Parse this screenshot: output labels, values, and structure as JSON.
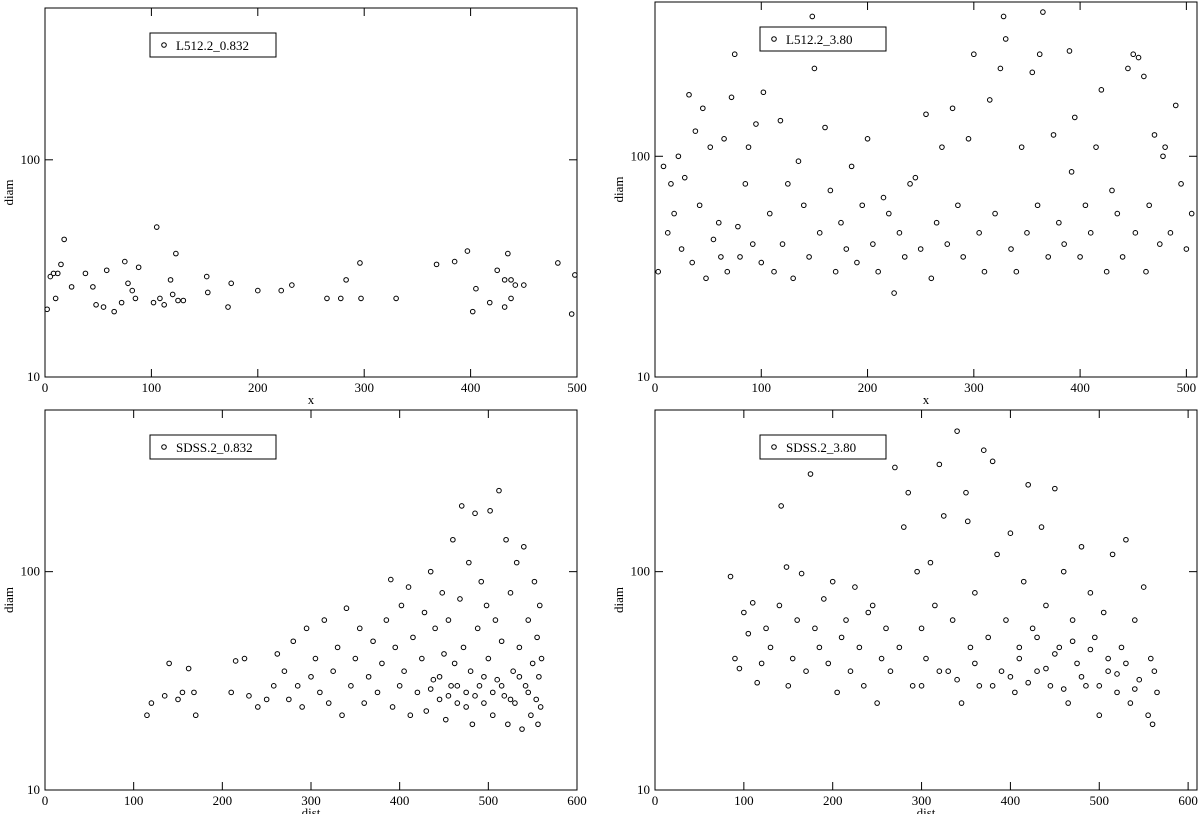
{
  "chart_data": [
    {
      "type": "scatter",
      "xlabel": "x",
      "ylabel": "diam",
      "ylog": true,
      "xlim": [
        0,
        500
      ],
      "ylim": [
        10,
        500
      ],
      "xticks": [
        0,
        100,
        200,
        300,
        400,
        500
      ],
      "yticks": [
        10,
        100
      ],
      "legend": "upper left",
      "series": [
        {
          "name": "L512.2_0.832",
          "color": "#000000",
          "x": [
            2,
            5,
            10,
            12,
            15,
            18,
            8,
            25,
            38,
            45,
            48,
            55,
            58,
            65,
            72,
            75,
            78,
            82,
            85,
            88,
            102,
            105,
            108,
            112,
            118,
            120,
            123,
            125,
            130,
            152,
            153,
            172,
            175,
            200,
            222,
            232,
            265,
            278,
            283,
            296,
            297,
            330,
            368,
            385,
            397,
            402,
            405,
            418,
            425,
            432,
            435,
            438,
            442,
            450,
            482,
            495,
            498,
            432,
            438
          ],
          "values": [
            20.5,
            29,
            23,
            30,
            33,
            43,
            30,
            26,
            30,
            26,
            21.5,
            21,
            31,
            20,
            22,
            34,
            27,
            25,
            23,
            32,
            22,
            49,
            23,
            21.5,
            28,
            24,
            37,
            22.5,
            22.5,
            29,
            24.5,
            21,
            27,
            25,
            25,
            26.5,
            23,
            23,
            28,
            33.5,
            23,
            23,
            33,
            34,
            38,
            20,
            25.5,
            22,
            31,
            21,
            37,
            28,
            26.5,
            26.5,
            33.5,
            19.5,
            29.5,
            28,
            23
          ]
        }
      ]
    },
    {
      "type": "scatter",
      "xlabel": "x",
      "ylabel": "diam",
      "ylog": true,
      "xlim": [
        0,
        510
      ],
      "ylim": [
        10,
        500
      ],
      "xticks": [
        0,
        100,
        200,
        300,
        400,
        500
      ],
      "yticks": [
        10,
        100
      ],
      "legend": "upper left",
      "series": [
        {
          "name": "L512.2_3.80",
          "color": "#000000",
          "x": [
            3,
            8,
            12,
            15,
            18,
            22,
            25,
            28,
            32,
            35,
            38,
            42,
            45,
            48,
            52,
            55,
            60,
            62,
            65,
            68,
            72,
            75,
            78,
            80,
            85,
            88,
            92,
            95,
            100,
            102,
            108,
            112,
            118,
            120,
            125,
            130,
            135,
            140,
            145,
            148,
            150,
            155,
            160,
            165,
            170,
            175,
            180,
            185,
            190,
            195,
            200,
            205,
            210,
            215,
            220,
            225,
            230,
            235,
            240,
            245,
            250,
            255,
            260,
            265,
            270,
            275,
            280,
            285,
            290,
            295,
            300,
            305,
            310,
            315,
            320,
            325,
            328,
            330,
            335,
            340,
            345,
            350,
            355,
            360,
            362,
            365,
            370,
            375,
            380,
            385,
            390,
            392,
            395,
            400,
            405,
            410,
            415,
            420,
            425,
            430,
            435,
            440,
            445,
            450,
            452,
            455,
            460,
            462,
            465,
            470,
            475,
            478,
            480,
            485,
            490,
            495,
            500,
            505
          ],
          "values": [
            30,
            90,
            45,
            75,
            55,
            100,
            38,
            80,
            190,
            33,
            130,
            60,
            165,
            28,
            110,
            42,
            50,
            35,
            120,
            30,
            185,
            290,
            48,
            35,
            75,
            110,
            40,
            140,
            33,
            195,
            55,
            30,
            145,
            40,
            75,
            28,
            95,
            60,
            35,
            430,
            250,
            45,
            135,
            70,
            30,
            50,
            38,
            90,
            33,
            60,
            120,
            40,
            30,
            65,
            55,
            24,
            45,
            35,
            75,
            80,
            38,
            155,
            28,
            50,
            110,
            40,
            165,
            60,
            35,
            120,
            290,
            45,
            30,
            180,
            55,
            250,
            430,
            340,
            38,
            30,
            110,
            45,
            240,
            60,
            290,
            450,
            35,
            125,
            50,
            40,
            300,
            85,
            150,
            35,
            60,
            45,
            110,
            200,
            30,
            70,
            55,
            35,
            250,
            290,
            45,
            280,
            230,
            30,
            60,
            125,
            40,
            100,
            110,
            45,
            170,
            75,
            38,
            55
          ]
        }
      ]
    },
    {
      "type": "scatter",
      "xlabel": "dist",
      "ylabel": "diam",
      "ylog": true,
      "xlim": [
        0,
        600
      ],
      "ylim": [
        10,
        550
      ],
      "xticks": [
        0,
        100,
        200,
        300,
        400,
        500,
        600
      ],
      "yticks": [
        10,
        100
      ],
      "legend": "upper left",
      "series": [
        {
          "name": "SDSS.2_0.832",
          "color": "#000000",
          "x": [
            115,
            120,
            135,
            140,
            150,
            155,
            162,
            168,
            170,
            210,
            215,
            225,
            230,
            240,
            250,
            258,
            262,
            270,
            275,
            280,
            285,
            290,
            295,
            300,
            305,
            310,
            315,
            320,
            325,
            330,
            335,
            340,
            345,
            350,
            355,
            360,
            365,
            370,
            375,
            380,
            385,
            390,
            392,
            395,
            400,
            402,
            405,
            410,
            412,
            415,
            420,
            425,
            428,
            430,
            435,
            438,
            440,
            445,
            448,
            450,
            452,
            455,
            458,
            460,
            462,
            465,
            468,
            470,
            472,
            475,
            478,
            480,
            482,
            485,
            488,
            490,
            492,
            495,
            498,
            500,
            502,
            505,
            508,
            510,
            512,
            515,
            518,
            520,
            522,
            525,
            528,
            530,
            532,
            535,
            538,
            540,
            542,
            545,
            548,
            550,
            552,
            554,
            555,
            556,
            557,
            558,
            559,
            560,
            545,
            535,
            525,
            515,
            505,
            495,
            485,
            475,
            465,
            455,
            445,
            435
          ],
          "values": [
            22,
            25,
            27,
            38,
            26,
            28,
            36,
            28,
            22,
            28,
            39,
            40,
            27,
            24,
            26,
            30,
            42,
            35,
            26,
            48,
            30,
            24,
            55,
            33,
            40,
            28,
            60,
            25,
            35,
            45,
            22,
            68,
            30,
            40,
            55,
            25,
            33,
            48,
            28,
            38,
            60,
            92,
            24,
            45,
            30,
            70,
            35,
            85,
            22,
            50,
            28,
            40,
            65,
            23,
            100,
            32,
            55,
            26,
            80,
            42,
            21,
            60,
            30,
            140,
            38,
            25,
            75,
            200,
            45,
            28,
            110,
            35,
            20,
            185,
            55,
            30,
            90,
            25,
            70,
            40,
            190,
            22,
            60,
            32,
            235,
            48,
            27,
            140,
            20,
            80,
            35,
            25,
            110,
            45,
            19,
            130,
            30,
            60,
            22,
            38,
            90,
            26,
            50,
            20,
            33,
            70,
            24,
            40,
            28,
            33,
            26,
            30,
            28,
            33,
            27,
            24,
            30,
            27,
            33,
            29
          ]
        }
      ]
    },
    {
      "type": "scatter",
      "xlabel": "dist",
      "ylabel": "diam",
      "ylog": true,
      "xlim": [
        0,
        610
      ],
      "ylim": [
        10,
        550
      ],
      "xticks": [
        0,
        100,
        200,
        300,
        400,
        500,
        600
      ],
      "yticks": [
        10,
        100
      ],
      "legend": "upper left",
      "series": [
        {
          "name": "SDSS.2_3.80",
          "color": "#000000",
          "x": [
            85,
            90,
            95,
            100,
            105,
            110,
            115,
            120,
            125,
            130,
            140,
            142,
            148,
            150,
            155,
            160,
            165,
            170,
            175,
            180,
            185,
            190,
            195,
            200,
            205,
            210,
            215,
            220,
            225,
            230,
            235,
            240,
            245,
            250,
            255,
            260,
            265,
            270,
            275,
            280,
            285,
            290,
            295,
            300,
            305,
            310,
            315,
            320,
            325,
            330,
            335,
            340,
            345,
            350,
            352,
            355,
            360,
            365,
            370,
            375,
            380,
            385,
            390,
            395,
            400,
            405,
            410,
            415,
            420,
            425,
            430,
            435,
            440,
            445,
            450,
            455,
            460,
            465,
            470,
            475,
            480,
            485,
            490,
            495,
            500,
            505,
            510,
            515,
            520,
            525,
            530,
            535,
            540,
            545,
            550,
            555,
            558,
            560,
            562,
            565,
            300,
            320,
            340,
            360,
            380,
            400,
            420,
            440,
            460,
            480,
            500,
            520,
            540,
            410,
            430,
            450,
            470,
            490,
            510,
            530
          ],
          "values": [
            95,
            40,
            36,
            65,
            52,
            72,
            31,
            38,
            55,
            45,
            70,
            200,
            105,
            30,
            40,
            60,
            98,
            35,
            280,
            55,
            45,
            75,
            38,
            90,
            28,
            50,
            60,
            35,
            85,
            45,
            30,
            65,
            70,
            25,
            40,
            55,
            35,
            300,
            45,
            160,
            230,
            30,
            100,
            55,
            40,
            110,
            70,
            310,
            180,
            35,
            60,
            440,
            25,
            230,
            170,
            45,
            80,
            30,
            360,
            50,
            320,
            120,
            35,
            60,
            150,
            28,
            40,
            90,
            250,
            55,
            35,
            160,
            70,
            30,
            240,
            45,
            100,
            25,
            60,
            38,
            130,
            30,
            80,
            50,
            22,
            65,
            35,
            120,
            28,
            45,
            140,
            25,
            60,
            32,
            85,
            22,
            40,
            20,
            35,
            28,
            30,
            35,
            32,
            38,
            30,
            33,
            31,
            36,
            29,
            33,
            30,
            34,
            29,
            45,
            50,
            42,
            48,
            44,
            40,
            38
          ]
        }
      ]
    }
  ]
}
